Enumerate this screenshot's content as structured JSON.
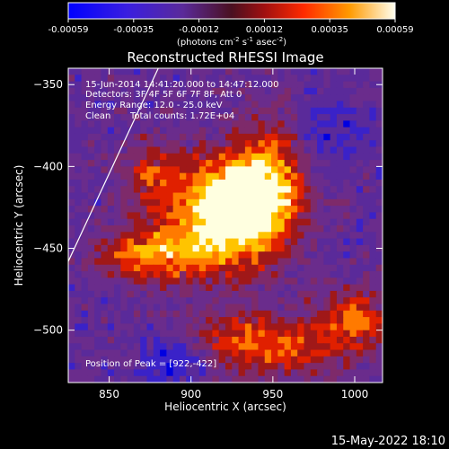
{
  "colorbar": {
    "ticks": [
      "-0.00059",
      "-0.00035",
      "-0.00012",
      "0.00012",
      "0.00035",
      "0.00059"
    ],
    "unit_label_parts": [
      "(photons cm",
      "-2",
      " s",
      "-1",
      " asec",
      "-2",
      ")"
    ]
  },
  "chart_data": {
    "type": "heatmap",
    "title": "Reconstructed RHESSI Image",
    "xlabel": "Heliocentric X (arcsec)",
    "ylabel": "Heliocentric Y (arcsec)",
    "xlim": [
      825,
      1017
    ],
    "ylim": [
      -532,
      -340
    ],
    "x_ticks": [
      850,
      900,
      950,
      1000
    ],
    "y_ticks": [
      -350,
      -400,
      -450,
      -500
    ],
    "x_tick_labels": [
      "850",
      "900",
      "950",
      "1000"
    ],
    "y_tick_labels": [
      "−350",
      "−400",
      "−450",
      "−500"
    ],
    "colormap": [
      "#0000e0",
      "#3a22c8",
      "#5a2a9a",
      "#6a2c8c",
      "#7e2a6a",
      "#a01818",
      "#e02000",
      "#ff7a00",
      "#ffc400",
      "#ffffe0"
    ],
    "limb_line": {
      "x": [
        825,
        880
      ],
      "y": [
        -458,
        -340
      ]
    },
    "peak": [
      922,
      -422
    ],
    "annotations": {
      "time": "15-Jun-2014 14:41:20.000 to 14:47:12.000",
      "detectors": "Detectors: 3F 4F 5F 6F 7F 8F, Att 0",
      "energy": "Energy Range: 12.0 - 25.0 keV",
      "method": "Clean",
      "counts": "Total counts: 1.72E+04",
      "peak_text": "Position of Peak = [922,-422]"
    }
  },
  "footer": {
    "timestamp": "15-May-2022 18:10"
  }
}
